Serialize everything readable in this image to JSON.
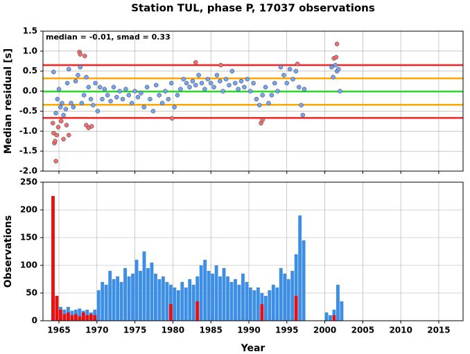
{
  "chart_data": [
    {
      "type": "scatter",
      "title": "Station TUL, phase P, 17037 observations",
      "annotation": "median = -0.01, smad = 0.33",
      "ylabel": "Median residual [s]",
      "xlim": [
        1962.9,
        2018.2
      ],
      "ylim": [
        -2,
        1.5
      ],
      "xticks": [
        1965,
        1970,
        1975,
        1980,
        1985,
        1990,
        1995,
        2000,
        2005,
        2010,
        2015
      ],
      "yticks": [
        {
          "value": -2,
          "label": "-2.0"
        },
        -1.5,
        {
          "value": -1,
          "label": "-1.0"
        },
        -0.5,
        {
          "value": 0,
          "label": "0.0"
        },
        0.5,
        {
          "value": 1,
          "label": "1.0"
        },
        1.5
      ],
      "grid": true,
      "hlines": [
        {
          "value": 0.65,
          "color": "#ff2020"
        },
        {
          "value": 0.32,
          "color": "#ffa500"
        },
        {
          "value": -0.01,
          "color": "#22dd22"
        },
        {
          "value": -0.34,
          "color": "#ffa500"
        },
        {
          "value": -0.67,
          "color": "#ff2020"
        }
      ],
      "series": [
        {
          "color": "#74a4f2",
          "x": [
            1964.3,
            1964.6,
            1964.8,
            1965.0,
            1965.2,
            1965.4,
            1965.6,
            1965.9,
            1966.1,
            1966.3,
            1966.6,
            1966.9,
            1967.2,
            1967.5,
            1967.8,
            1968.0,
            1968.3,
            1968.6,
            1968.9,
            1969.2,
            1969.5,
            1969.8,
            1970.1,
            1970.4,
            1970.7,
            1971.0,
            1971.4,
            1971.8,
            1972.2,
            1972.6,
            1973.0,
            1973.4,
            1973.8,
            1974.2,
            1974.6,
            1975.0,
            1975.4,
            1975.8,
            1976.2,
            1976.6,
            1977.0,
            1977.4,
            1977.8,
            1978.2,
            1978.6,
            1979.0,
            1979.4,
            1979.8,
            1980.2,
            1980.6,
            1981.0,
            1981.4,
            1981.8,
            1982.2,
            1982.6,
            1983.0,
            1983.4,
            1983.8,
            1984.2,
            1984.6,
            1985.0,
            1985.4,
            1985.8,
            1986.2,
            1986.6,
            1987.0,
            1987.4,
            1987.8,
            1988.2,
            1988.6,
            1989.0,
            1989.4,
            1989.8,
            1990.2,
            1990.6,
            1991.0,
            1991.4,
            1991.8,
            1992.2,
            1992.6,
            1993.0,
            1993.4,
            1993.8,
            1994.2,
            1994.6,
            1995.0,
            1995.4,
            1995.8,
            1996.2,
            1996.6,
            1996.9,
            1997.1,
            1997.3,
            2000.9,
            2001.1,
            2001.4,
            2001.6,
            2001.8,
            2002.0
          ],
          "values": [
            0.48,
            -0.55,
            -0.2,
            0.05,
            -0.4,
            -0.3,
            -0.6,
            -0.45,
            0.2,
            0.55,
            -0.3,
            -0.4,
            0.25,
            0.4,
            0.6,
            -0.3,
            -0.1,
            0.35,
            0.1,
            -0.2,
            -0.35,
            0.2,
            -0.5,
            0.1,
            -0.2,
            0.05,
            -0.1,
            -0.25,
            0.1,
            -0.15,
            0.0,
            -0.2,
            0.05,
            -0.1,
            -0.3,
            0.0,
            -0.15,
            -0.05,
            -0.4,
            0.1,
            -0.2,
            -0.5,
            0.15,
            -0.1,
            -0.3,
            0.0,
            -0.2,
            0.2,
            -0.4,
            -0.1,
            0.05,
            0.3,
            0.2,
            0.1,
            0.25,
            0.15,
            0.4,
            0.2,
            0.05,
            0.3,
            0.2,
            0.1,
            0.4,
            0.25,
            0.0,
            0.3,
            0.15,
            0.5,
            0.2,
            0.05,
            0.25,
            0.1,
            0.3,
            0.0,
            0.2,
            -0.2,
            -0.35,
            -0.1,
            0.1,
            -0.3,
            -0.1,
            0.2,
            0.0,
            0.6,
            0.4,
            0.2,
            0.55,
            0.3,
            0.5,
            0.1,
            -0.35,
            -0.6,
            0.05,
            0.6,
            0.35,
            0.65,
            0.5,
            0.55,
            0.0
          ]
        },
        {
          "color": "#f07070",
          "x": [
            1964.2,
            1964.3,
            1964.4,
            1964.5,
            1964.6,
            1964.7,
            1964.9,
            1965.3,
            1965.6,
            1966.0,
            1966.3,
            1967.7,
            1967.8,
            1968.4,
            1968.6,
            1968.9,
            1969.3,
            1979.9,
            1983.0,
            1986.3,
            1991.6,
            1991.8,
            1996.4,
            2001.2,
            2001.5,
            2001.6
          ],
          "values": [
            -0.8,
            -1.05,
            -1.3,
            -1.25,
            -1.75,
            -1.1,
            -0.9,
            -0.75,
            -1.2,
            -0.85,
            -1.1,
            0.98,
            0.92,
            0.88,
            -0.85,
            -0.92,
            -0.88,
            -0.68,
            0.72,
            0.65,
            -0.8,
            -0.72,
            0.68,
            0.82,
            0.85,
            1.18
          ]
        }
      ]
    },
    {
      "type": "histogram",
      "ylabel": "Observations",
      "xlabel": "Year",
      "xlim": [
        1962.9,
        2018.2
      ],
      "ylim": [
        0,
        250
      ],
      "xticks": [
        1965,
        1970,
        1975,
        1980,
        1985,
        1990,
        1995,
        2000,
        2005,
        2010,
        2015
      ],
      "yticks": [
        0,
        50,
        100,
        150,
        200,
        250
      ],
      "grid": true,
      "bins": [
        1964,
        1964.5,
        1965,
        1965.5,
        1966,
        1966.5,
        1967,
        1967.5,
        1968,
        1968.5,
        1969,
        1969.5,
        1970,
        1970.5,
        1971,
        1971.5,
        1972,
        1972.5,
        1973,
        1973.5,
        1974,
        1974.5,
        1975,
        1975.5,
        1976,
        1976.5,
        1977,
        1977.5,
        1978,
        1978.5,
        1979,
        1979.5,
        1980,
        1980.5,
        1981,
        1981.5,
        1982,
        1982.5,
        1983,
        1983.5,
        1984,
        1984.5,
        1985,
        1985.5,
        1986,
        1986.5,
        1987,
        1987.5,
        1988,
        1988.5,
        1989,
        1989.5,
        1990,
        1990.5,
        1991,
        1991.5,
        1992,
        1992.5,
        1993,
        1993.5,
        1994,
        1994.5,
        1995,
        1995.5,
        1996,
        1996.5,
        1997,
        1997.5,
        1998,
        1998.5,
        1999,
        1999.5,
        2000,
        2000.5,
        2001,
        2001.5,
        2002,
        2002.5
      ],
      "series": [
        {
          "color": "#3d8fe6",
          "values": [
            40,
            30,
            25,
            20,
            25,
            18,
            20,
            22,
            18,
            20,
            15,
            20,
            55,
            70,
            65,
            90,
            75,
            80,
            70,
            95,
            80,
            85,
            110,
            90,
            125,
            95,
            105,
            85,
            75,
            80,
            70,
            65,
            60,
            55,
            70,
            60,
            75,
            65,
            80,
            100,
            110,
            90,
            85,
            100,
            80,
            95,
            80,
            70,
            75,
            65,
            85,
            70,
            60,
            55,
            60,
            50,
            45,
            55,
            65,
            60,
            95,
            85,
            75,
            90,
            120,
            190,
            145,
            0,
            0,
            0,
            0,
            0,
            15,
            10,
            20,
            65,
            35
          ]
        },
        {
          "color": "#e81010",
          "values": [
            225,
            45,
            20,
            12,
            15,
            10,
            12,
            8,
            15,
            10,
            12,
            10,
            0,
            0,
            0,
            0,
            0,
            0,
            0,
            0,
            0,
            0,
            0,
            0,
            0,
            0,
            0,
            0,
            0,
            0,
            0,
            30,
            0,
            0,
            0,
            0,
            0,
            0,
            35,
            0,
            0,
            0,
            0,
            0,
            0,
            0,
            0,
            0,
            0,
            0,
            0,
            0,
            0,
            0,
            0,
            30,
            0,
            0,
            0,
            0,
            0,
            0,
            0,
            0,
            45,
            0,
            0,
            0,
            0,
            0,
            0,
            0,
            0,
            0,
            10,
            0,
            0
          ]
        }
      ]
    }
  ]
}
